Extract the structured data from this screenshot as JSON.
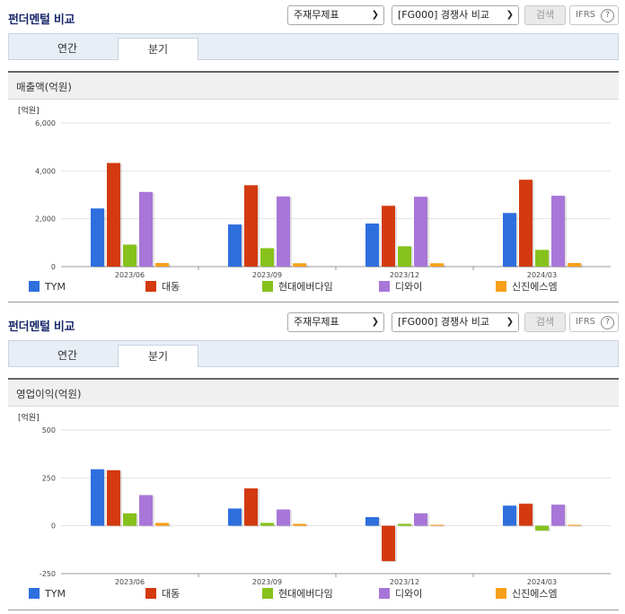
{
  "sections": [
    {
      "title": "펀더멘털 비교",
      "statement_select": "주재무제표",
      "peer_select": "[FG000] 경쟁사 비교",
      "search_label": "검색",
      "ifrs_label": "IFRS",
      "help_symbol": "?",
      "tabs": [
        "연간",
        "분기"
      ],
      "active_tab": "분기",
      "panel_title": "매출액(억원)"
    },
    {
      "title": "펀더멘털 비교",
      "statement_select": "주재무제표",
      "peer_select": "[FG000] 경쟁사 비교",
      "search_label": "검색",
      "ifrs_label": "IFRS",
      "help_symbol": "?",
      "tabs": [
        "연간",
        "분기"
      ],
      "active_tab": "분기",
      "panel_title": "영업이익(억원)"
    }
  ],
  "colors": {
    "TYM": "#2e6fde",
    "대동": "#d33a10",
    "현대에버다임": "#86c21b",
    "디와이": "#a876d8",
    "신진에스엠": "#f7a01a"
  },
  "chart_data": [
    {
      "type": "bar",
      "unit_label": "[억원]",
      "categories": [
        "2023/06",
        "2023/09",
        "2023/12",
        "2024/03"
      ],
      "ylim": [
        0,
        6000
      ],
      "yticks": [
        0,
        2000,
        4000,
        6000
      ],
      "ytick_labels": [
        "0",
        "2,000",
        "4,000",
        "6,000"
      ],
      "grid": true,
      "legend": "bottom",
      "series": [
        {
          "name": "TYM",
          "values": [
            2430,
            1760,
            1800,
            2240
          ]
        },
        {
          "name": "대동",
          "values": [
            4330,
            3400,
            2540,
            3630
          ]
        },
        {
          "name": "현대에버다임",
          "values": [
            920,
            770,
            850,
            700
          ]
        },
        {
          "name": "디와이",
          "values": [
            3120,
            2930,
            2920,
            2960
          ]
        },
        {
          "name": "신진에스엠",
          "values": [
            150,
            140,
            140,
            150
          ]
        }
      ]
    },
    {
      "type": "bar",
      "unit_label": "[억원]",
      "categories": [
        "2023/06",
        "2023/09",
        "2023/12",
        "2024/03"
      ],
      "ylim": [
        -250,
        500
      ],
      "yticks": [
        -250,
        0,
        250,
        500
      ],
      "ytick_labels": [
        "-250",
        "0",
        "250",
        "500"
      ],
      "grid": true,
      "legend": "bottom",
      "series": [
        {
          "name": "TYM",
          "values": [
            295,
            90,
            45,
            105
          ]
        },
        {
          "name": "대동",
          "values": [
            290,
            195,
            -185,
            115
          ]
        },
        {
          "name": "현대에버다임",
          "values": [
            65,
            15,
            10,
            -25
          ]
        },
        {
          "name": "디와이",
          "values": [
            160,
            85,
            65,
            110
          ]
        },
        {
          "name": "신진에스엠",
          "values": [
            15,
            10,
            5,
            5
          ]
        }
      ]
    }
  ]
}
